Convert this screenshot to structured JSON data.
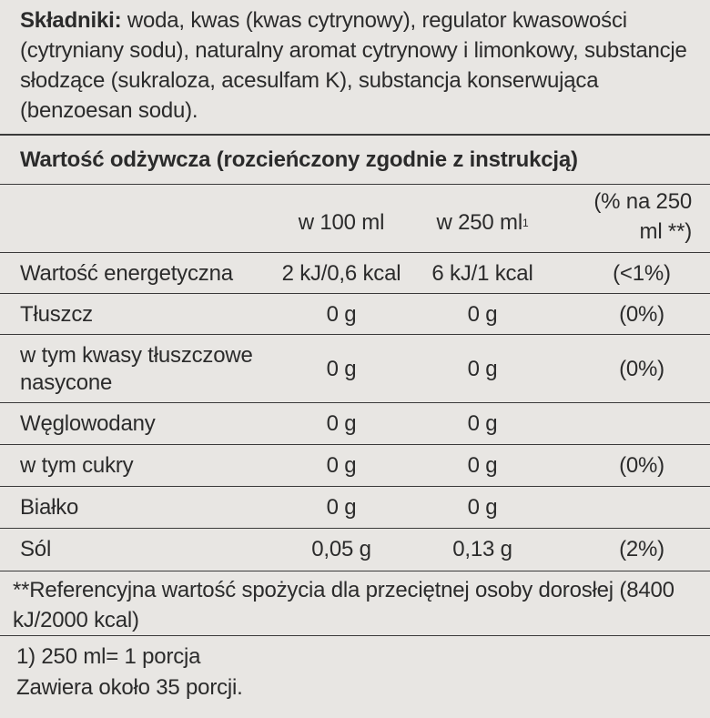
{
  "ingredients": {
    "label": "Składniki:",
    "text": "woda, kwas (kwas cytrynowy), regulator kwasowości (cytryniany sodu), naturalny aromat cytrynowy i limonkowy, substancje słodzące (sukraloza, acesulfam K), substancja konserwująca (benzoesan sodu)."
  },
  "table": {
    "title": "Wartość odżywcza (rozcieńczony zgodnie z instrukcją)",
    "header": {
      "per_100ml": "w 100 ml",
      "per_250ml": "w 250 ml",
      "per_250ml_note": "1",
      "percent": "(% na 250 ml **)"
    },
    "rows": [
      {
        "name": "Wartość energetyczna",
        "per_100ml": "2 kJ/0,6 kcal",
        "per_250ml": "6 kJ/1 kcal",
        "percent": "(<1%)"
      },
      {
        "name": "Tłuszcz",
        "per_100ml": "0 g",
        "per_250ml": "0 g",
        "percent": "(0%)"
      },
      {
        "name": "w tym kwasy tłuszczowe nasycone",
        "per_100ml": "0 g",
        "per_250ml": "0 g",
        "percent": "(0%)"
      },
      {
        "name": "Węglowodany",
        "per_100ml": "0 g",
        "per_250ml": "0 g"
      },
      {
        "name": "w tym cukry",
        "per_100ml": "0 g",
        "per_250ml": "0 g",
        "percent": "(0%)"
      },
      {
        "name": "Białko",
        "per_100ml": "0 g",
        "per_250ml": "0 g"
      },
      {
        "name": "Sól",
        "per_100ml": "0,05 g",
        "per_250ml": "0,13 g",
        "percent": "(2%)"
      }
    ]
  },
  "footnotes": [
    "**Referencyjna wartość spożycia dla przeciętnej osoby dorosłej (8400 kJ/2000 kcal)",
    "1) 250 ml= 1 porcja",
    "Zawiera około 35 porcji."
  ]
}
